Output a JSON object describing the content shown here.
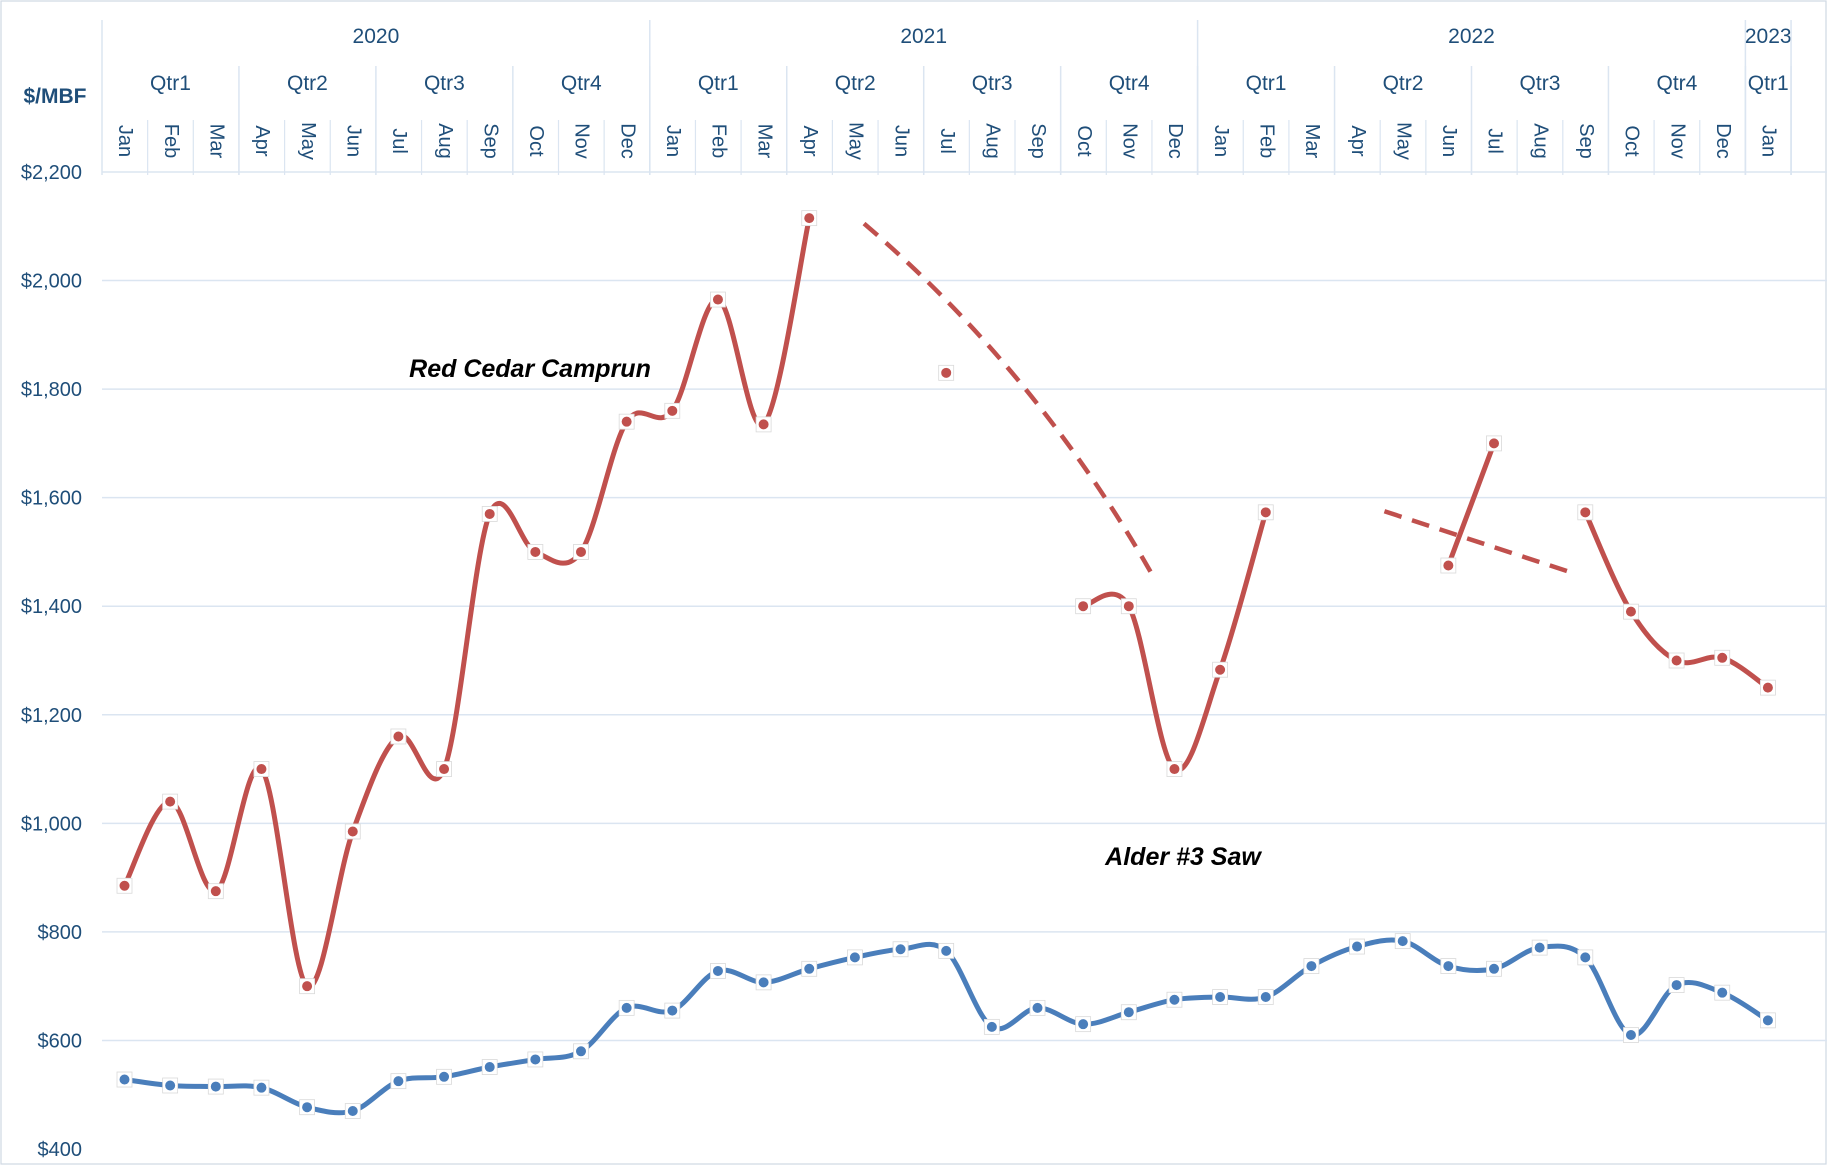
{
  "chart_data": {
    "type": "line",
    "ylabel": "$/MBF",
    "ylim": [
      400,
      2200
    ],
    "y_ticks": [
      400,
      600,
      800,
      1000,
      1200,
      1400,
      1600,
      1800,
      2000,
      2200
    ],
    "y_tick_labels": [
      "$400",
      "$600",
      "$800",
      "$1,000",
      "$1,200",
      "$1,400",
      "$1,600",
      "$1,800",
      "$2,000",
      "$2,200"
    ],
    "grid": true,
    "years": [
      {
        "label": "2020",
        "months": 12
      },
      {
        "label": "2021",
        "months": 12
      },
      {
        "label": "2022",
        "months": 12
      },
      {
        "label": "2023",
        "months": 1
      }
    ],
    "quarters": [
      "Qtr1",
      "Qtr2",
      "Qtr3",
      "Qtr4",
      "Qtr1",
      "Qtr2",
      "Qtr3",
      "Qtr4",
      "Qtr1",
      "Qtr2",
      "Qtr3",
      "Qtr4",
      "Qtr1"
    ],
    "categories": [
      "Jan",
      "Feb",
      "Mar",
      "Apr",
      "May",
      "Jun",
      "Jul",
      "Aug",
      "Sep",
      "Oct",
      "Nov",
      "Dec",
      "Jan",
      "Feb",
      "Mar",
      "Apr",
      "May",
      "Jun",
      "Jul",
      "Aug",
      "Sep",
      "Oct",
      "Nov",
      "Dec",
      "Jan",
      "Feb",
      "Mar",
      "Apr",
      "May",
      "Jun",
      "Jul",
      "Aug",
      "Sep",
      "Oct",
      "Nov",
      "Dec",
      "Jan"
    ],
    "series": [
      {
        "name": "Red Cedar Camprun",
        "color": "#c0504d",
        "values": [
          885,
          1040,
          875,
          1100,
          700,
          985,
          1160,
          1100,
          1570,
          1500,
          1500,
          1740,
          1760,
          1965,
          1735,
          2115,
          null,
          null,
          1830,
          null,
          null,
          1400,
          1400,
          1100,
          1283,
          1573,
          null,
          null,
          null,
          1475,
          1700,
          null,
          1573,
          1390,
          1300,
          1305,
          1250
        ],
        "trendlines": [
          {
            "x_start": 16.2,
            "x_end": 22.5,
            "y_start": 2105,
            "y_end": 1460
          },
          {
            "x_start": 27.6,
            "x_end": 31.7,
            "y_start": 1575,
            "y_end": 1462
          }
        ]
      },
      {
        "name": "Alder #3 Saw",
        "color": "#4a7ebb",
        "values": [
          528,
          517,
          515,
          513,
          477,
          470,
          525,
          533,
          551,
          565,
          580,
          660,
          655,
          728,
          707,
          732,
          753,
          768,
          765,
          625,
          660,
          630,
          652,
          675,
          680,
          680,
          737,
          773,
          783,
          737,
          732,
          771,
          753,
          610,
          702,
          688,
          637
        ]
      }
    ]
  }
}
